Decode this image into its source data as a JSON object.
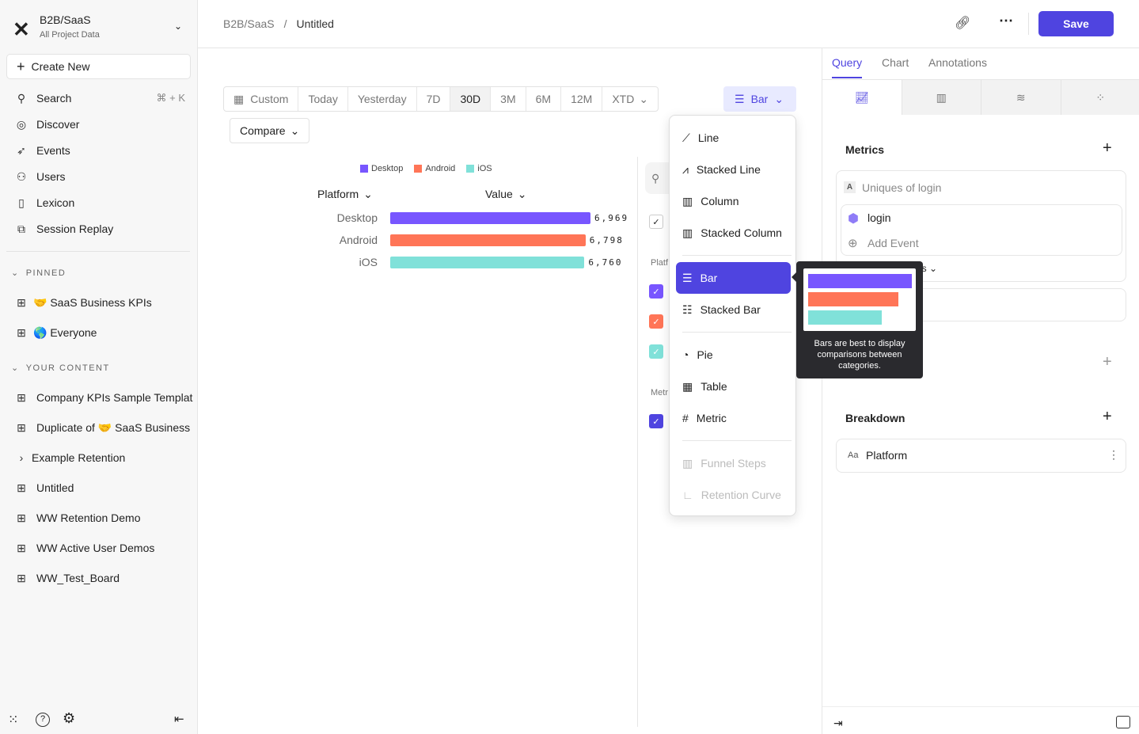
{
  "project": {
    "name": "B2B/SaaS",
    "subtitle": "All Project Data"
  },
  "sidebar": {
    "create_new": "Create New",
    "search": "Search",
    "search_shortcut": "⌘ + K",
    "nav": [
      "Discover",
      "Events",
      "Users",
      "Lexicon",
      "Session Replay"
    ],
    "pinned_label": "PINNED",
    "pinned": [
      {
        "emoji": "🤝",
        "label": "SaaS Business KPIs"
      },
      {
        "emoji": "🌎",
        "label": "Everyone"
      }
    ],
    "content_label": "YOUR CONTENT",
    "content": [
      "Company KPIs Sample Templat",
      "Duplicate of",
      "Example Retention",
      "Untitled",
      "WW Retention Demo",
      "WW Active User Demos",
      "WW_Test_Board"
    ],
    "duplicate_suffix": "SaaS Business",
    "duplicate_emoji": "🤝"
  },
  "header": {
    "breadcrumb": [
      "B2B/SaaS",
      "Untitled"
    ],
    "separator": "/",
    "save": "Save"
  },
  "date_range": {
    "options": [
      "Custom",
      "Today",
      "Yesterday",
      "7D",
      "30D",
      "3M",
      "6M",
      "12M",
      "XTD"
    ],
    "selected": "30D"
  },
  "compare": "Compare",
  "chart_type_button": "Bar",
  "chart_data": {
    "type": "bar",
    "orientation": "horizontal",
    "legend": [
      "Desktop",
      "Android",
      "iOS"
    ],
    "legend_placement": "top",
    "column_headers": [
      "Platform",
      "Value"
    ],
    "categories": [
      "Desktop",
      "Android",
      "iOS"
    ],
    "values": [
      6969,
      6798,
      6760
    ],
    "value_labels": [
      "6,969",
      "6,798",
      "6,760"
    ],
    "colors": [
      "#7856ff",
      "#ff7557",
      "#80e1d9"
    ]
  },
  "side_filters": {
    "platform_label": "Platf",
    "metrics_label": "Metr"
  },
  "chart_menu": {
    "groups": [
      [
        "Line",
        "Stacked Line",
        "Column",
        "Stacked Column"
      ],
      [
        "Bar",
        "Stacked Bar"
      ],
      [
        "Pie",
        "Table",
        "Metric"
      ],
      [
        "Funnel Steps",
        "Retention Curve"
      ]
    ],
    "selected": "Bar",
    "disabled": [
      "Funnel Steps",
      "Retention Curve"
    ]
  },
  "tooltip": {
    "text": "Bars are best to display comparisons between categories."
  },
  "right_panel": {
    "tabs": [
      "Query",
      "Chart",
      "Annotations"
    ],
    "active_tab": "Query",
    "metrics_title": "Metrics",
    "metric": {
      "letter": "A",
      "name": "Uniques of login",
      "event": "login",
      "add_event": "Add Event",
      "measure_partial": "es"
    },
    "breakdown_title": "Breakdown",
    "breakdown": {
      "type": "Aa",
      "name": "Platform"
    }
  },
  "colors": {
    "accent": "#4f44e0"
  }
}
